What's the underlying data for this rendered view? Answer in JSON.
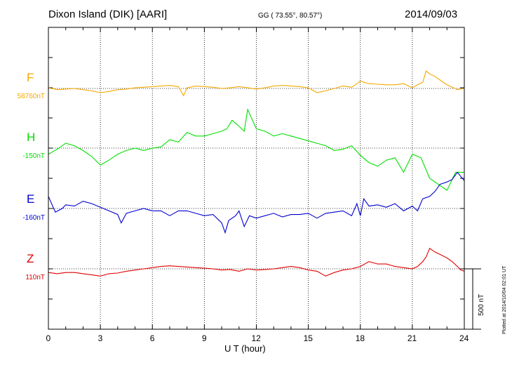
{
  "header": {
    "station": "Dixon Island (DIK)  [AARI]",
    "coords": "GG ( 73.55°,  80.57°)",
    "date": "2014/09/03"
  },
  "footer": {
    "plotted": "Plotted at 2014/10/04 02:01  UT",
    "scale_label": "500 nT"
  },
  "chart_data": {
    "type": "line",
    "xlabel": "U T (hour)",
    "xlim": [
      0,
      24
    ],
    "x_ticks": [
      "0",
      "3",
      "6",
      "9",
      "12",
      "15",
      "18",
      "21",
      "24"
    ],
    "grid": true,
    "scale_bar_nT": 500,
    "channels": [
      {
        "name": "F",
        "baseline_label": "58760nT",
        "color": "#f5a800"
      },
      {
        "name": "H",
        "baseline_label": "-150nT",
        "color": "#00e000"
      },
      {
        "name": "E",
        "baseline_label": "-160nT",
        "color": "#0000d0"
      },
      {
        "name": "Z",
        "baseline_label": "110nT",
        "color": "#e00000"
      }
    ],
    "series": [
      {
        "name": "F",
        "x": [
          0,
          0.5,
          1,
          1.5,
          2,
          2.5,
          3,
          3.5,
          4,
          4.5,
          5,
          5.5,
          6,
          6.5,
          7,
          7.5,
          7.8,
          8,
          8.5,
          9,
          9.5,
          10,
          10.5,
          11,
          11.5,
          12,
          12.5,
          13,
          13.5,
          14,
          14.5,
          15,
          15.5,
          16,
          16.5,
          17,
          17.5,
          18,
          18.5,
          19,
          19.5,
          20,
          20.5,
          21,
          21.3,
          21.6,
          21.8,
          22,
          22.3,
          22.6,
          23,
          23.3,
          23.6,
          24
        ],
        "y": [
          5,
          -10,
          -5,
          0,
          -10,
          -20,
          -35,
          -25,
          -10,
          -5,
          5,
          10,
          15,
          20,
          25,
          15,
          -60,
          5,
          20,
          15,
          10,
          0,
          5,
          15,
          5,
          -5,
          5,
          20,
          25,
          20,
          15,
          5,
          -35,
          -20,
          0,
          20,
          10,
          60,
          40,
          35,
          30,
          30,
          40,
          5,
          30,
          50,
          145,
          120,
          100,
          70,
          30,
          10,
          -10,
          0
        ]
      },
      {
        "name": "H",
        "x": [
          0,
          0.5,
          1,
          1.5,
          2,
          2.5,
          3,
          3.5,
          4,
          4.5,
          5,
          5.5,
          6,
          6.5,
          7,
          7.5,
          8,
          8.5,
          9,
          9.5,
          10,
          10.3,
          10.6,
          11,
          11.3,
          11.5,
          12,
          12.5,
          13,
          13.5,
          14,
          14.5,
          15,
          15.5,
          16,
          16.5,
          17,
          17.5,
          18,
          18.5,
          19,
          19.5,
          20,
          20.5,
          21,
          21.5,
          22,
          22.5,
          23,
          23.5,
          24
        ],
        "y": [
          -50,
          -10,
          40,
          20,
          -20,
          -70,
          -140,
          -100,
          -50,
          -20,
          0,
          -20,
          0,
          10,
          70,
          50,
          130,
          100,
          100,
          120,
          140,
          160,
          230,
          180,
          140,
          320,
          160,
          140,
          100,
          120,
          100,
          80,
          60,
          40,
          20,
          -20,
          -10,
          20,
          -60,
          -120,
          -150,
          -100,
          -80,
          -200,
          -50,
          -80,
          -250,
          -300,
          -350,
          -200,
          -200
        ]
      },
      {
        "name": "E",
        "x": [
          0,
          0.4,
          0.8,
          1,
          1.5,
          2,
          2.5,
          3,
          3.5,
          4,
          4.2,
          4.5,
          5,
          5.5,
          6,
          6.5,
          7,
          7.5,
          8,
          8.5,
          9,
          9.5,
          10,
          10.2,
          10.4,
          10.8,
          11,
          11.3,
          11.6,
          12,
          12.5,
          13,
          13.5,
          14,
          14.5,
          15,
          15.5,
          16,
          16.5,
          17,
          17.5,
          17.8,
          18,
          18.2,
          18.5,
          19,
          19.5,
          20,
          20.5,
          21,
          21.3,
          21.6,
          22,
          22.3,
          22.6,
          23,
          23.3,
          23.6,
          24
        ],
        "y": [
          100,
          -30,
          0,
          30,
          20,
          60,
          40,
          10,
          -20,
          -50,
          -120,
          -40,
          -20,
          0,
          -20,
          -20,
          -60,
          -20,
          -20,
          -40,
          -60,
          -50,
          -120,
          -200,
          -100,
          -60,
          -20,
          -150,
          -60,
          -80,
          -60,
          -40,
          -70,
          -50,
          -50,
          -40,
          -80,
          -40,
          -30,
          -20,
          -60,
          40,
          -60,
          80,
          20,
          30,
          10,
          40,
          -20,
          20,
          -20,
          80,
          100,
          140,
          200,
          220,
          240,
          300,
          230
        ]
      },
      {
        "name": "Z",
        "x": [
          0,
          0.5,
          1,
          1.5,
          2,
          2.5,
          3,
          3.5,
          4,
          4.5,
          5,
          5.5,
          6,
          6.5,
          7,
          7.5,
          8,
          8.5,
          9,
          9.5,
          10,
          10.5,
          11,
          11.5,
          12,
          12.5,
          13,
          13.5,
          14,
          14.5,
          15,
          15.5,
          16,
          16.5,
          17,
          17.5,
          18,
          18.5,
          19,
          19.5,
          20,
          20.5,
          21,
          21.3,
          21.6,
          21.8,
          22,
          22.3,
          22.6,
          23,
          23.3,
          23.6,
          23.8,
          24
        ],
        "y": [
          -30,
          -40,
          -30,
          -30,
          -40,
          -50,
          -60,
          -40,
          -35,
          -20,
          -10,
          0,
          10,
          20,
          25,
          20,
          15,
          10,
          5,
          0,
          -10,
          -5,
          -20,
          0,
          -10,
          -5,
          0,
          10,
          20,
          10,
          -10,
          -20,
          -60,
          -30,
          -10,
          0,
          20,
          60,
          40,
          40,
          20,
          10,
          0,
          20,
          60,
          100,
          170,
          140,
          120,
          90,
          60,
          20,
          -10,
          -20
        ]
      }
    ]
  }
}
